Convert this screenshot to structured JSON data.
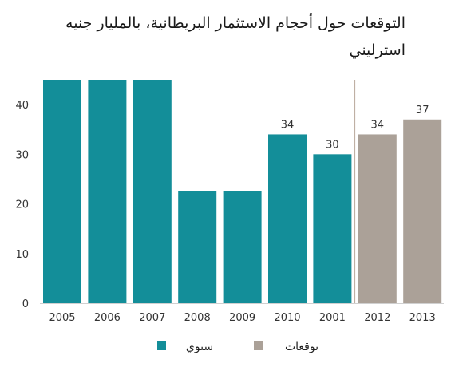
{
  "chart_data": {
    "type": "bar",
    "title": "التوقعات حول أحجام الاستثمار البريطانية، بالمليار جنيه استرليني",
    "xlabel": "",
    "ylabel": "",
    "ylim": [
      0,
      45
    ],
    "yticks": [
      "0",
      "10",
      "20",
      "30",
      "40"
    ],
    "grid": false,
    "legend_position": "bottom",
    "categories": [
      "2005",
      "2006",
      "2007",
      "2008",
      "2009",
      "2010",
      "2001",
      "2012",
      "2013"
    ],
    "values": [
      45,
      45,
      45,
      22.5,
      22.5,
      34,
      30,
      34,
      37
    ],
    "data_labels": [
      "",
      "",
      "",
      "",
      "",
      "34",
      "30",
      "34",
      "37"
    ],
    "bar_series": [
      "annual",
      "annual",
      "annual",
      "annual",
      "annual",
      "annual",
      "annual",
      "forecast",
      "forecast"
    ],
    "series": [
      {
        "key": "annual",
        "name": "سنوي",
        "color": "#138e99"
      },
      {
        "key": "forecast",
        "name": "توقعات",
        "color": "#aba198"
      }
    ]
  }
}
